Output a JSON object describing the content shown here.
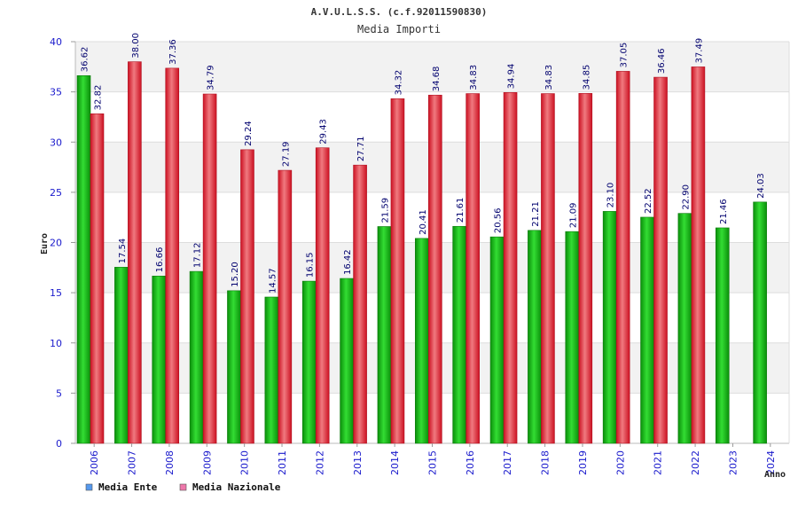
{
  "chart_data": {
    "type": "bar",
    "title": "A.V.U.L.S.S. (c.f.92011590830)",
    "subtitle": "Media Importi",
    "xlabel": "Anno",
    "ylabel": "Euro",
    "ylim": [
      0,
      40
    ],
    "yticks": [
      0,
      5,
      10,
      15,
      20,
      25,
      30,
      35,
      40
    ],
    "categories": [
      "2006",
      "2007",
      "2008",
      "2009",
      "2010",
      "2011",
      "2012",
      "2013",
      "2014",
      "2015",
      "2016",
      "2017",
      "2018",
      "2019",
      "2020",
      "2021",
      "2022",
      "2023",
      "2024"
    ],
    "series": [
      {
        "name": "Media Ente",
        "color": "#22cc22",
        "values": [
          36.62,
          17.54,
          16.66,
          17.12,
          15.2,
          14.57,
          16.15,
          16.42,
          21.59,
          20.41,
          21.61,
          20.56,
          21.21,
          21.09,
          23.1,
          22.52,
          22.9,
          21.46,
          24.03
        ],
        "labels": [
          "36.62",
          "17.54",
          "16.66",
          "17.12",
          "15.20",
          "14.57",
          "16.15",
          "16.42",
          "21.59",
          "20.41",
          "21.61",
          "20.56",
          "21.21",
          "21.09",
          "23.10",
          "22.52",
          "22.90",
          "21.46",
          "24.03"
        ]
      },
      {
        "name": "Media Nazionale",
        "color": "#ee2233",
        "values": [
          32.82,
          38.0,
          37.36,
          34.79,
          29.24,
          27.19,
          29.43,
          27.71,
          34.32,
          34.68,
          34.83,
          34.94,
          34.83,
          34.85,
          37.05,
          36.46,
          37.49,
          null,
          null
        ],
        "labels": [
          "32.82",
          "38.00",
          "37.36",
          "34.79",
          "29.24",
          "27.19",
          "29.43",
          "27.71",
          "34.32",
          "34.68",
          "34.83",
          "34.94",
          "34.83",
          "34.85",
          "37.05",
          "36.46",
          "37.49",
          "",
          ""
        ]
      }
    ],
    "legend": [
      {
        "label": "Media Ente",
        "swatch": "#5599ee"
      },
      {
        "label": "Media Nazionale",
        "swatch": "#ee77aa"
      }
    ],
    "grid": true,
    "legend_position": "bottom-left"
  }
}
